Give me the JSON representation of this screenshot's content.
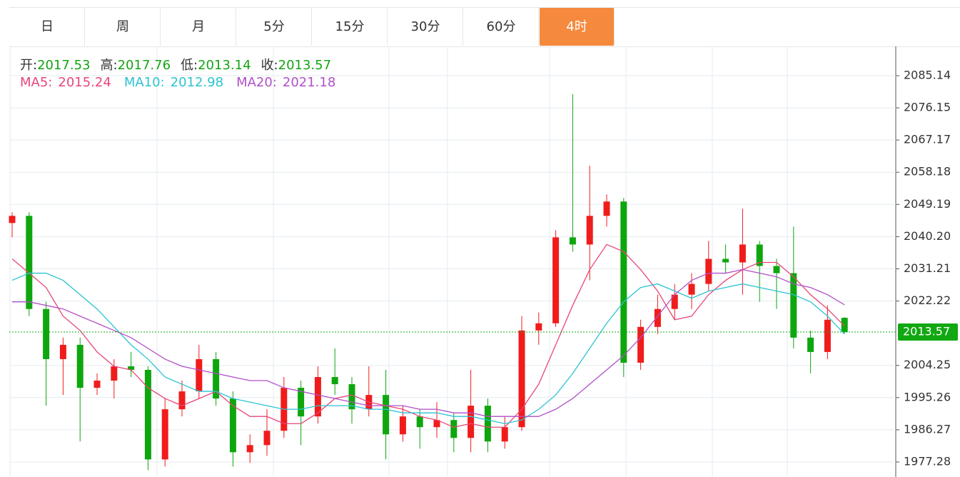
{
  "tabs": [
    "日",
    "周",
    "月",
    "5分",
    "15分",
    "30分",
    "60分",
    "4时"
  ],
  "active_tab": 7,
  "chart_data": {
    "type": "candlestick",
    "info_labels": [
      "开:",
      "高:",
      "低:",
      "收:"
    ],
    "up_color": "#f01c1c",
    "down_color": "#0ea60e",
    "open": [
      2044,
      2046,
      2020,
      2006,
      2010,
      1998,
      2000,
      2004,
      2003,
      1978,
      1992,
      1997,
      2006,
      1995,
      1980,
      1982,
      1986,
      1998,
      1990,
      2001,
      1999,
      1992,
      1996,
      1985,
      1990,
      1987,
      1989,
      1984,
      1993,
      1983,
      1987,
      2014,
      2016,
      2040,
      2038,
      2046,
      2050,
      2005,
      2015,
      2020,
      2024,
      2027,
      2034,
      2033,
      2038,
      2032,
      2030,
      2012,
      2008,
      2017.53
    ],
    "high": [
      2047,
      2047,
      2022,
      2012,
      2012,
      2002,
      2006,
      2008,
      2004,
      1995,
      2000,
      2010,
      2008,
      1997,
      1985,
      1992,
      2001,
      2000,
      2004,
      2009,
      2001,
      2004,
      2003,
      1993,
      1992,
      1994,
      1991,
      2003,
      1995,
      1990,
      2018,
      2019,
      2042,
      2080,
      2060,
      2052,
      2051,
      2017,
      2024,
      2027,
      2030,
      2039,
      2038,
      2048,
      2039,
      2034,
      2043,
      2014,
      2021,
      2017.76
    ],
    "low": [
      2040,
      2018,
      1993,
      1996,
      1983,
      1996,
      1995,
      2001,
      1975,
      1976,
      1990,
      1995,
      1993,
      1976,
      1977,
      1979,
      1984,
      1982,
      1988,
      1996,
      1988,
      1990,
      1978,
      1983,
      1981,
      1984,
      1980,
      1980,
      1980,
      1981,
      1986,
      2010,
      2015,
      2036,
      2028,
      2043,
      2001,
      2003,
      2013,
      2017,
      2020,
      2025,
      2030,
      2024,
      2022,
      2020,
      2009,
      2002,
      2006,
      2013.14
    ],
    "close": [
      2046,
      2020,
      2006,
      2010,
      1998,
      2000,
      2004,
      2003,
      1978,
      1992,
      1997,
      2006,
      1995,
      1980,
      1982,
      1986,
      1998,
      1990,
      2001,
      1999,
      1992,
      1996,
      1985,
      1990,
      1987,
      1989,
      1984,
      1993,
      1983,
      1987,
      2014,
      2016,
      2040,
      2038,
      2046,
      2050,
      2005,
      2015,
      2020,
      2024,
      2027,
      2034,
      2033,
      2038,
      2032,
      2030,
      2012,
      2008,
      2017,
      2013.57
    ],
    "series": [
      {
        "name": "MA5:",
        "color": "#e8457a",
        "values": [
          2034,
          2030,
          2026,
          2018,
          2014,
          2008,
          2004,
          2003,
          1998,
          1995,
          1993,
          1995,
          1997,
          1993,
          1990,
          1990,
          1988,
          1988,
          1991,
          1995,
          1996,
          1994,
          1993,
          1992,
          1990,
          1989,
          1987,
          1988,
          1987,
          1987,
          1992,
          1999,
          2010,
          2021,
          2031,
          2038,
          2036,
          2031,
          2025,
          2017,
          2018,
          2024,
          2028,
          2031,
          2033,
          2033,
          2029,
          2024,
          2020,
          2015.24
        ]
      },
      {
        "name": "MA10:",
        "color": "#2cc3d2",
        "values": [
          2028,
          2030,
          2030,
          2028,
          2024,
          2020,
          2015,
          2010,
          2006,
          2001,
          1999,
          1997,
          1997,
          1995,
          1994,
          1993,
          1992,
          1992,
          1993,
          1993,
          1993,
          1992,
          1992,
          1991,
          1991,
          1991,
          1990,
          1990,
          1989,
          1988,
          1989,
          1992,
          1996,
          2002,
          2009,
          2016,
          2022,
          2026,
          2027,
          2025,
          2023,
          2025,
          2026,
          2027,
          2026,
          2025,
          2024,
          2022,
          2018,
          2012.98
        ]
      },
      {
        "name": "MA20:",
        "color": "#b24fc8",
        "values": [
          2022,
          2022,
          2021,
          2020,
          2018,
          2016,
          2014,
          2012,
          2009,
          2006,
          2004,
          2003,
          2002,
          2001,
          2000,
          2000,
          1998,
          1997,
          1996,
          1995,
          1994,
          1993,
          1993,
          1993,
          1992,
          1992,
          1991,
          1991,
          1990,
          1990,
          1990,
          1990,
          1992,
          1995,
          1999,
          2003,
          2007,
          2012,
          2018,
          2024,
          2028,
          2030,
          2030,
          2031,
          2030,
          2029,
          2027,
          2026,
          2024,
          2021.18
        ]
      }
    ],
    "ylim": [
      1973.09,
      2093.31
    ],
    "yticks": [
      2085.14,
      2076.15,
      2067.17,
      2058.18,
      2049.19,
      {
        "value": 2040.2,
        "label": "2040.20"
      },
      2031.21,
      2022.22,
      2004.25,
      1995.26,
      1986.27,
      1977.28
    ],
    "grid": true
  }
}
